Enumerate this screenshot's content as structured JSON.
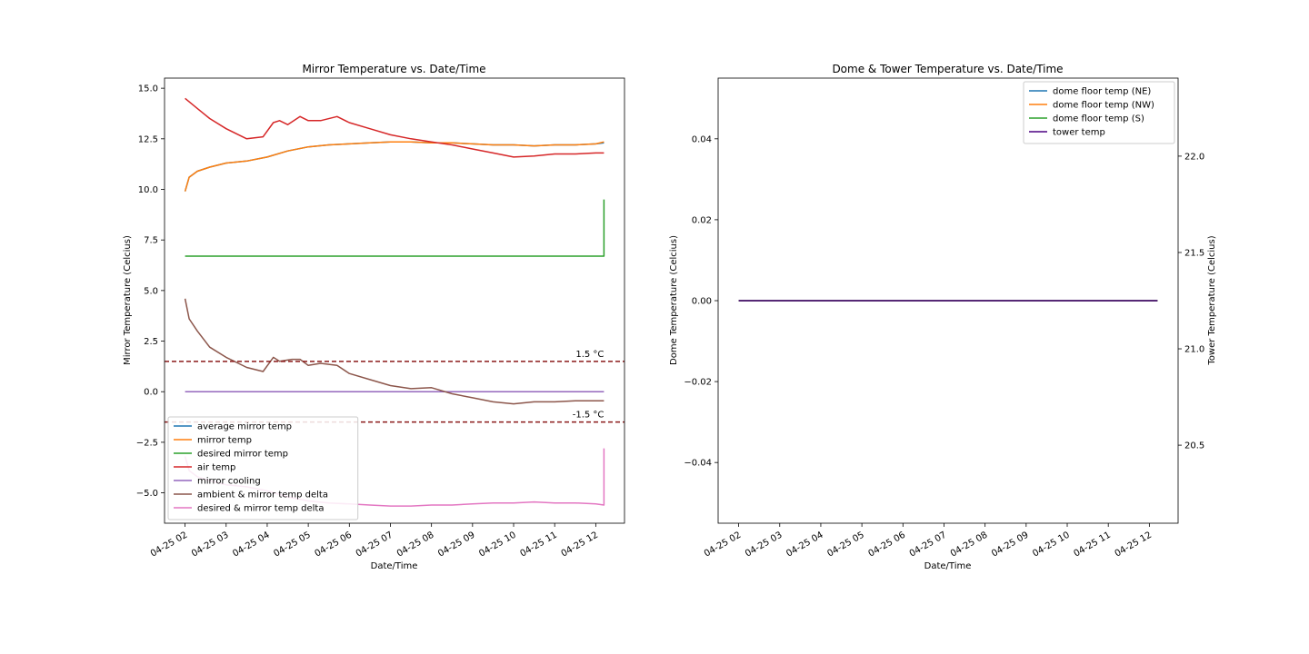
{
  "chart_data": [
    {
      "type": "line",
      "title": "Mirror Temperature vs. Date/Time",
      "xlabel": "Date/Time",
      "ylabel": "Mirror Temperature (Celcius)",
      "x_ticks": [
        "04-25 02",
        "04-25 03",
        "04-25 04",
        "04-25 05",
        "04-25 06",
        "04-25 07",
        "04-25 08",
        "04-25 09",
        "04-25 10",
        "04-25 11",
        "04-25 12"
      ],
      "xlim_hours": [
        1.5,
        12.7
      ],
      "ylim": [
        -6.5,
        15.5
      ],
      "y_ticks": [
        -5.0,
        -2.5,
        0.0,
        2.5,
        5.0,
        7.5,
        10.0,
        12.5,
        15.0
      ],
      "y_tick_labels": [
        "−5.0",
        "−2.5",
        "0.0",
        "2.5",
        "5.0",
        "7.5",
        "10.0",
        "12.5",
        "15.0"
      ],
      "legend_position": "lower-left",
      "hlines": [
        {
          "y": 1.5,
          "label": "1.5 °C",
          "color": "#8b1a1a"
        },
        {
          "y": -1.5,
          "label": "-1.5 °C",
          "color": "#8b1a1a"
        }
      ],
      "series": [
        {
          "name": "average mirror temp",
          "color": "#1f77b4",
          "x": [
            2.0,
            2.1,
            2.3,
            2.6,
            3.0,
            3.5,
            4.0,
            4.5,
            5.0,
            5.5,
            6.0,
            6.5,
            7.0,
            7.5,
            8.0,
            8.5,
            9.0,
            9.5,
            10.0,
            10.5,
            11.0,
            11.5,
            12.0,
            12.2
          ],
          "y": [
            9.9,
            10.6,
            10.9,
            11.1,
            11.3,
            11.4,
            11.6,
            11.9,
            12.1,
            12.2,
            12.25,
            12.3,
            12.35,
            12.35,
            12.3,
            12.3,
            12.25,
            12.2,
            12.2,
            12.15,
            12.2,
            12.2,
            12.25,
            12.3
          ]
        },
        {
          "name": "mirror temp",
          "color": "#ff7f0e",
          "x": [
            2.0,
            2.1,
            2.3,
            2.6,
            3.0,
            3.5,
            4.0,
            4.5,
            5.0,
            5.5,
            6.0,
            6.5,
            7.0,
            7.5,
            8.0,
            8.5,
            9.0,
            9.5,
            10.0,
            10.5,
            11.0,
            11.5,
            12.0,
            12.2
          ],
          "y": [
            9.9,
            10.6,
            10.9,
            11.1,
            11.3,
            11.4,
            11.6,
            11.9,
            12.1,
            12.2,
            12.25,
            12.3,
            12.35,
            12.35,
            12.3,
            12.3,
            12.25,
            12.2,
            12.2,
            12.15,
            12.2,
            12.2,
            12.25,
            12.35
          ]
        },
        {
          "name": "desired mirror temp",
          "color": "#2ca02c",
          "x": [
            2.0,
            12.2,
            12.2
          ],
          "y": [
            6.7,
            6.7,
            9.5
          ]
        },
        {
          "name": "air temp",
          "color": "#d62728",
          "x": [
            2.0,
            2.3,
            2.6,
            3.0,
            3.5,
            3.9,
            4.15,
            4.3,
            4.5,
            4.8,
            5.0,
            5.3,
            5.7,
            6.0,
            6.5,
            7.0,
            7.5,
            8.0,
            8.5,
            9.0,
            9.5,
            10.0,
            10.5,
            11.0,
            11.5,
            12.0,
            12.2
          ],
          "y": [
            14.5,
            14.0,
            13.5,
            13.0,
            12.5,
            12.6,
            13.3,
            13.4,
            13.2,
            13.6,
            13.4,
            13.4,
            13.6,
            13.3,
            13.0,
            12.7,
            12.5,
            12.35,
            12.2,
            12.0,
            11.8,
            11.6,
            11.65,
            11.75,
            11.75,
            11.8,
            11.8
          ]
        },
        {
          "name": "mirror cooling",
          "color": "#9467bd",
          "x": [
            2.0,
            12.2
          ],
          "y": [
            0.0,
            0.0
          ]
        },
        {
          "name": "ambient & mirror temp delta",
          "color": "#8c564b",
          "x": [
            2.0,
            2.1,
            2.3,
            2.6,
            3.0,
            3.5,
            3.9,
            4.15,
            4.3,
            4.6,
            4.8,
            5.0,
            5.3,
            5.7,
            6.0,
            6.5,
            7.0,
            7.5,
            8.0,
            8.5,
            9.0,
            9.5,
            10.0,
            10.5,
            11.0,
            11.5,
            12.0,
            12.2
          ],
          "y": [
            4.6,
            3.6,
            3.0,
            2.2,
            1.7,
            1.2,
            1.0,
            1.7,
            1.5,
            1.6,
            1.6,
            1.3,
            1.4,
            1.3,
            0.9,
            0.6,
            0.3,
            0.15,
            0.2,
            -0.1,
            -0.3,
            -0.5,
            -0.6,
            -0.5,
            -0.5,
            -0.45,
            -0.45,
            -0.45
          ]
        },
        {
          "name": "desired & mirror temp delta",
          "color": "#e377c2",
          "x": [
            2.0,
            2.1,
            2.3,
            2.6,
            3.0,
            3.5,
            4.0,
            4.5,
            5.0,
            5.5,
            6.0,
            6.5,
            7.0,
            7.5,
            8.0,
            8.5,
            9.0,
            9.5,
            10.0,
            10.5,
            11.0,
            11.5,
            12.0,
            12.2,
            12.2
          ],
          "y": [
            -3.2,
            -3.9,
            -4.2,
            -4.4,
            -4.6,
            -4.7,
            -4.9,
            -5.2,
            -5.4,
            -5.5,
            -5.55,
            -5.6,
            -5.65,
            -5.65,
            -5.6,
            -5.6,
            -5.55,
            -5.5,
            -5.5,
            -5.45,
            -5.5,
            -5.5,
            -5.55,
            -5.6,
            -2.8
          ]
        }
      ]
    },
    {
      "type": "line",
      "title": "Dome & Tower Temperature vs. Date/Time",
      "xlabel": "Date/Time",
      "ylabel": "Dome Temperature (Celcius)",
      "ylabel_right": "Tower Temperature (Celcius)",
      "x_ticks": [
        "04-25 02",
        "04-25 03",
        "04-25 04",
        "04-25 05",
        "04-25 06",
        "04-25 07",
        "04-25 08",
        "04-25 09",
        "04-25 10",
        "04-25 11",
        "04-25 12"
      ],
      "xlim_hours": [
        1.5,
        12.7
      ],
      "ylim": [
        -0.055,
        0.055
      ],
      "y_ticks": [
        -0.04,
        -0.02,
        0.0,
        0.02,
        0.04
      ],
      "y_tick_labels": [
        "−0.04",
        "−0.02",
        "0.00",
        "0.02",
        "0.04"
      ],
      "ylim_right": [
        20.095,
        22.405
      ],
      "y_ticks_right": [
        20.5,
        21.0,
        21.5,
        22.0
      ],
      "y_tick_labels_right": [
        "20.5",
        "21.0",
        "21.5",
        "22.0"
      ],
      "legend_position": "upper-right",
      "series": [
        {
          "name": "dome floor temp (NE)",
          "color": "#1f77b4",
          "x": [
            2.0,
            12.2
          ],
          "y": [
            0.0,
            0.0
          ]
        },
        {
          "name": "dome floor temp (NW)",
          "color": "#ff7f0e",
          "x": [
            2.0,
            12.2
          ],
          "y": [
            0.0,
            0.0
          ]
        },
        {
          "name": "dome floor temp (S)",
          "color": "#2ca02c",
          "x": [
            2.0,
            12.2
          ],
          "y": [
            0.0,
            0.0
          ]
        },
        {
          "name": "tower temp",
          "color": "#4b0082",
          "x": [
            2.0,
            12.2
          ],
          "y": [
            0.0,
            0.0
          ]
        }
      ]
    }
  ]
}
